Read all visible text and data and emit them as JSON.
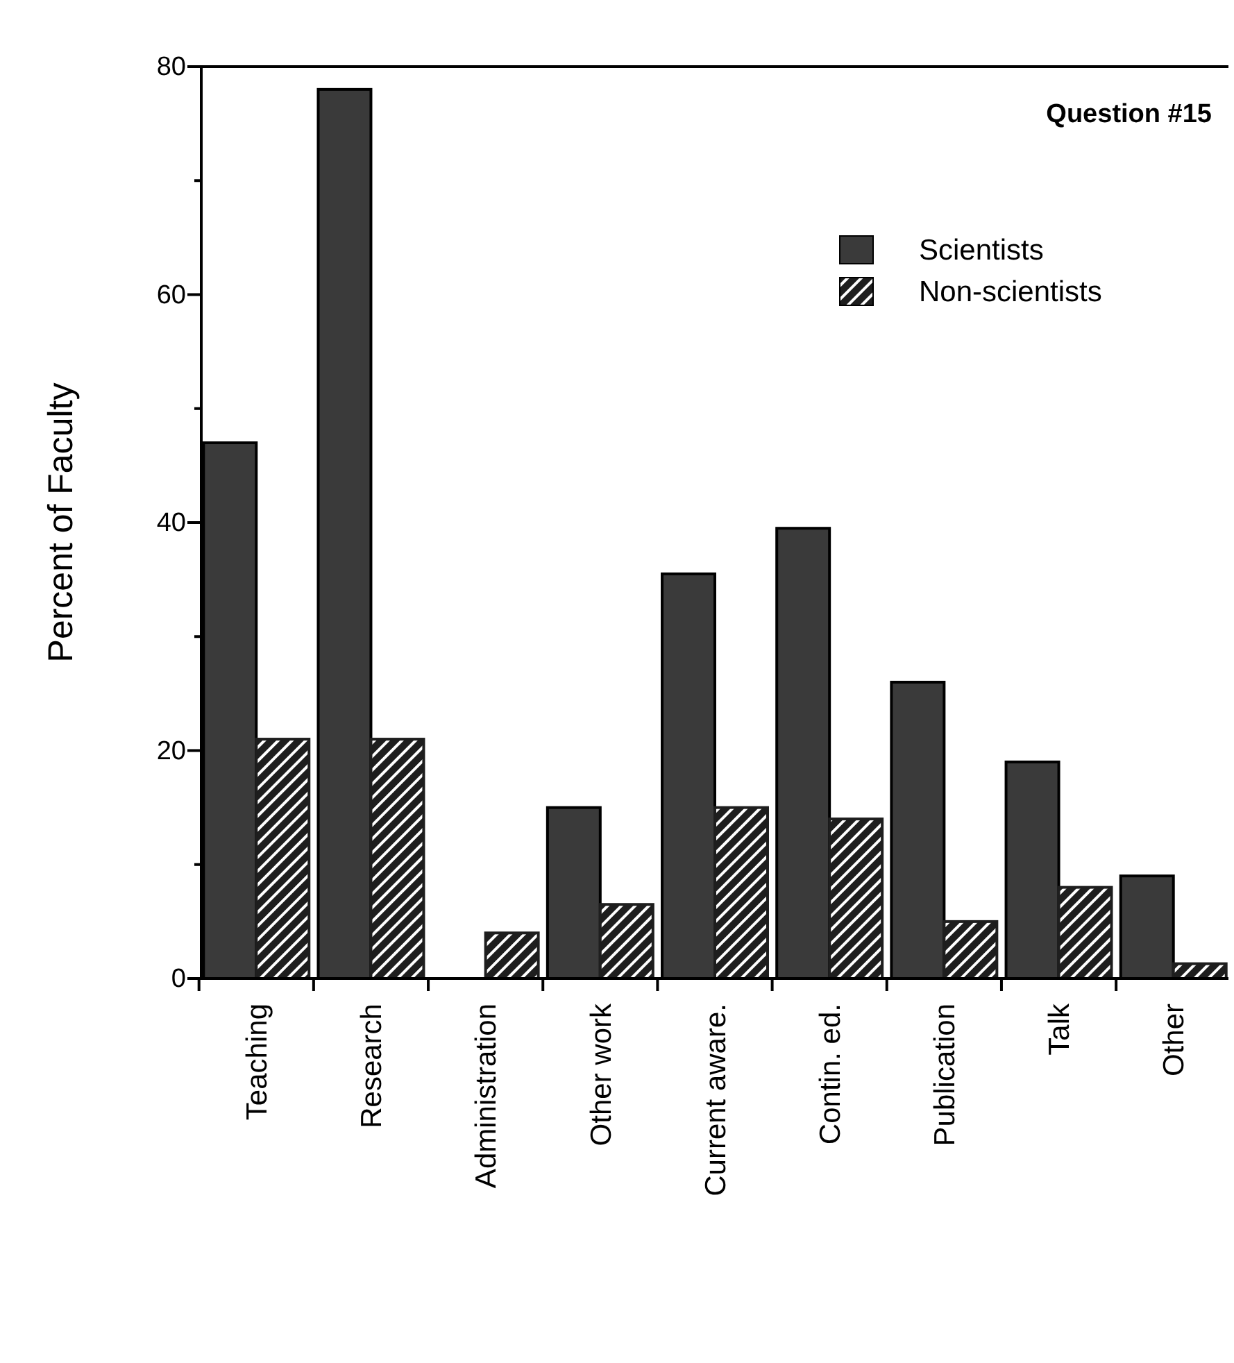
{
  "chart_data": {
    "type": "bar",
    "ylabel": "Percent of Faculty",
    "annotations": [
      "Question  #15"
    ],
    "categories": [
      "Teaching",
      "Research",
      "Administration",
      "Other work",
      "Current aware.",
      "Contin. ed.",
      "Publication",
      "Talk",
      "Other"
    ],
    "series": [
      {
        "name": "Scientists",
        "color": "#3a3a3a",
        "values": [
          47,
          78,
          0,
          15,
          35.5,
          39.5,
          26,
          19,
          9
        ]
      },
      {
        "name": "Non-scientists",
        "color": "#1e1e1e",
        "values": [
          21,
          21,
          4,
          6.5,
          15,
          14,
          5,
          8,
          1.3
        ]
      }
    ],
    "ylim": [
      0,
      80
    ],
    "yticks": [
      0,
      {
        "value": 10,
        "label": null
      },
      20,
      {
        "value": 30,
        "label": null
      },
      40,
      {
        "value": 50,
        "label": null
      },
      60,
      {
        "value": 70,
        "label": null
      },
      80
    ],
    "legend": "top right",
    "grid": false
  }
}
